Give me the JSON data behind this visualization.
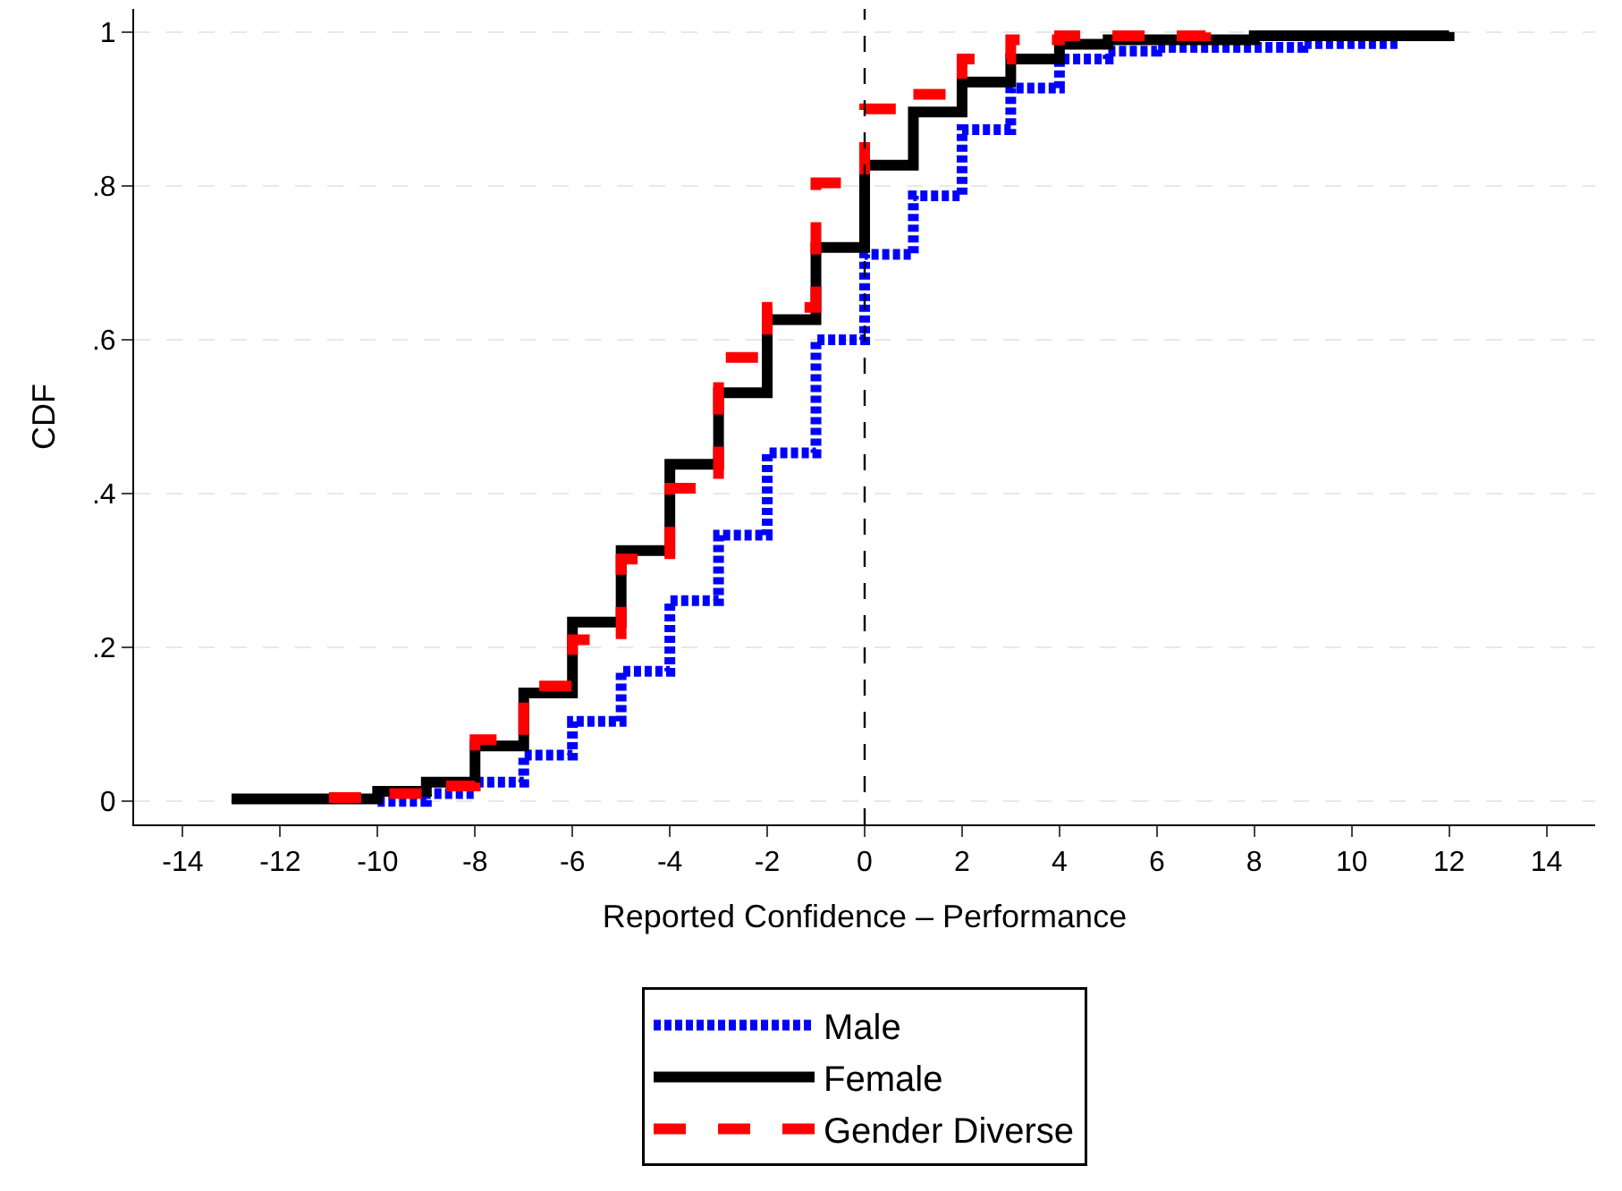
{
  "chart_data": {
    "type": "step",
    "xlabel": "Reported Confidence – Performance",
    "ylabel": "CDF",
    "xlim": [
      -15,
      15
    ],
    "ylim": [
      -0.03,
      1.03
    ],
    "xticks": [
      -14,
      -12,
      -10,
      -8,
      -6,
      -4,
      -2,
      0,
      2,
      4,
      6,
      8,
      10,
      12,
      14
    ],
    "yticks": [
      {
        "value": 0,
        "label": "0"
      },
      {
        "value": 0.2,
        "label": ".2"
      },
      {
        "value": 0.4,
        "label": ".4"
      },
      {
        "value": 0.6,
        "label": ".6"
      },
      {
        "value": 0.8,
        "label": ".8"
      },
      {
        "value": 1,
        "label": "1"
      }
    ],
    "grid": "y",
    "legend": "bottom",
    "ref_lines": [
      {
        "axis": "x",
        "value": 0,
        "label": null,
        "color": "#000000",
        "line_style": "dashed"
      }
    ],
    "series": [
      {
        "name": "Male",
        "color": "#0000ff",
        "line_style": "dotted",
        "x": [
          -10,
          -9,
          -8,
          -7,
          -6,
          -5,
          -4,
          -3,
          -2,
          -1,
          0,
          1,
          2,
          3,
          4,
          5,
          6,
          9,
          11
        ],
        "values": [
          0.0,
          0.01,
          0.025,
          0.06,
          0.104,
          0.169,
          0.261,
          0.346,
          0.453,
          0.6,
          0.711,
          0.787,
          0.873,
          0.927,
          0.965,
          0.975,
          0.98,
          0.985,
          0.985
        ]
      },
      {
        "name": "Female",
        "color": "#000000",
        "line_style": "solid",
        "x": [
          -13,
          -10,
          -9,
          -8,
          -7,
          -6,
          -5,
          -4,
          -3,
          -2,
          -1,
          0,
          1,
          2,
          3,
          4,
          5,
          8,
          12
        ],
        "values": [
          0.003,
          0.013,
          0.025,
          0.072,
          0.141,
          0.233,
          0.326,
          0.438,
          0.531,
          0.626,
          0.72,
          0.827,
          0.896,
          0.935,
          0.965,
          0.984,
          0.99,
          0.995,
          1.0
        ]
      },
      {
        "name": "Gender Diverse",
        "color": "#ff0000",
        "line_style": "dashed",
        "x": [
          -11,
          -10,
          -9,
          -8,
          -7,
          -6,
          -5,
          -4,
          -3,
          -2,
          -1,
          0,
          1,
          2,
          3,
          4,
          7
        ],
        "values": [
          0.005,
          0.01,
          0.02,
          0.08,
          0.15,
          0.21,
          0.315,
          0.407,
          0.577,
          0.642,
          0.804,
          0.9,
          0.919,
          0.965,
          0.99,
          0.995,
          1.0
        ]
      }
    ]
  }
}
